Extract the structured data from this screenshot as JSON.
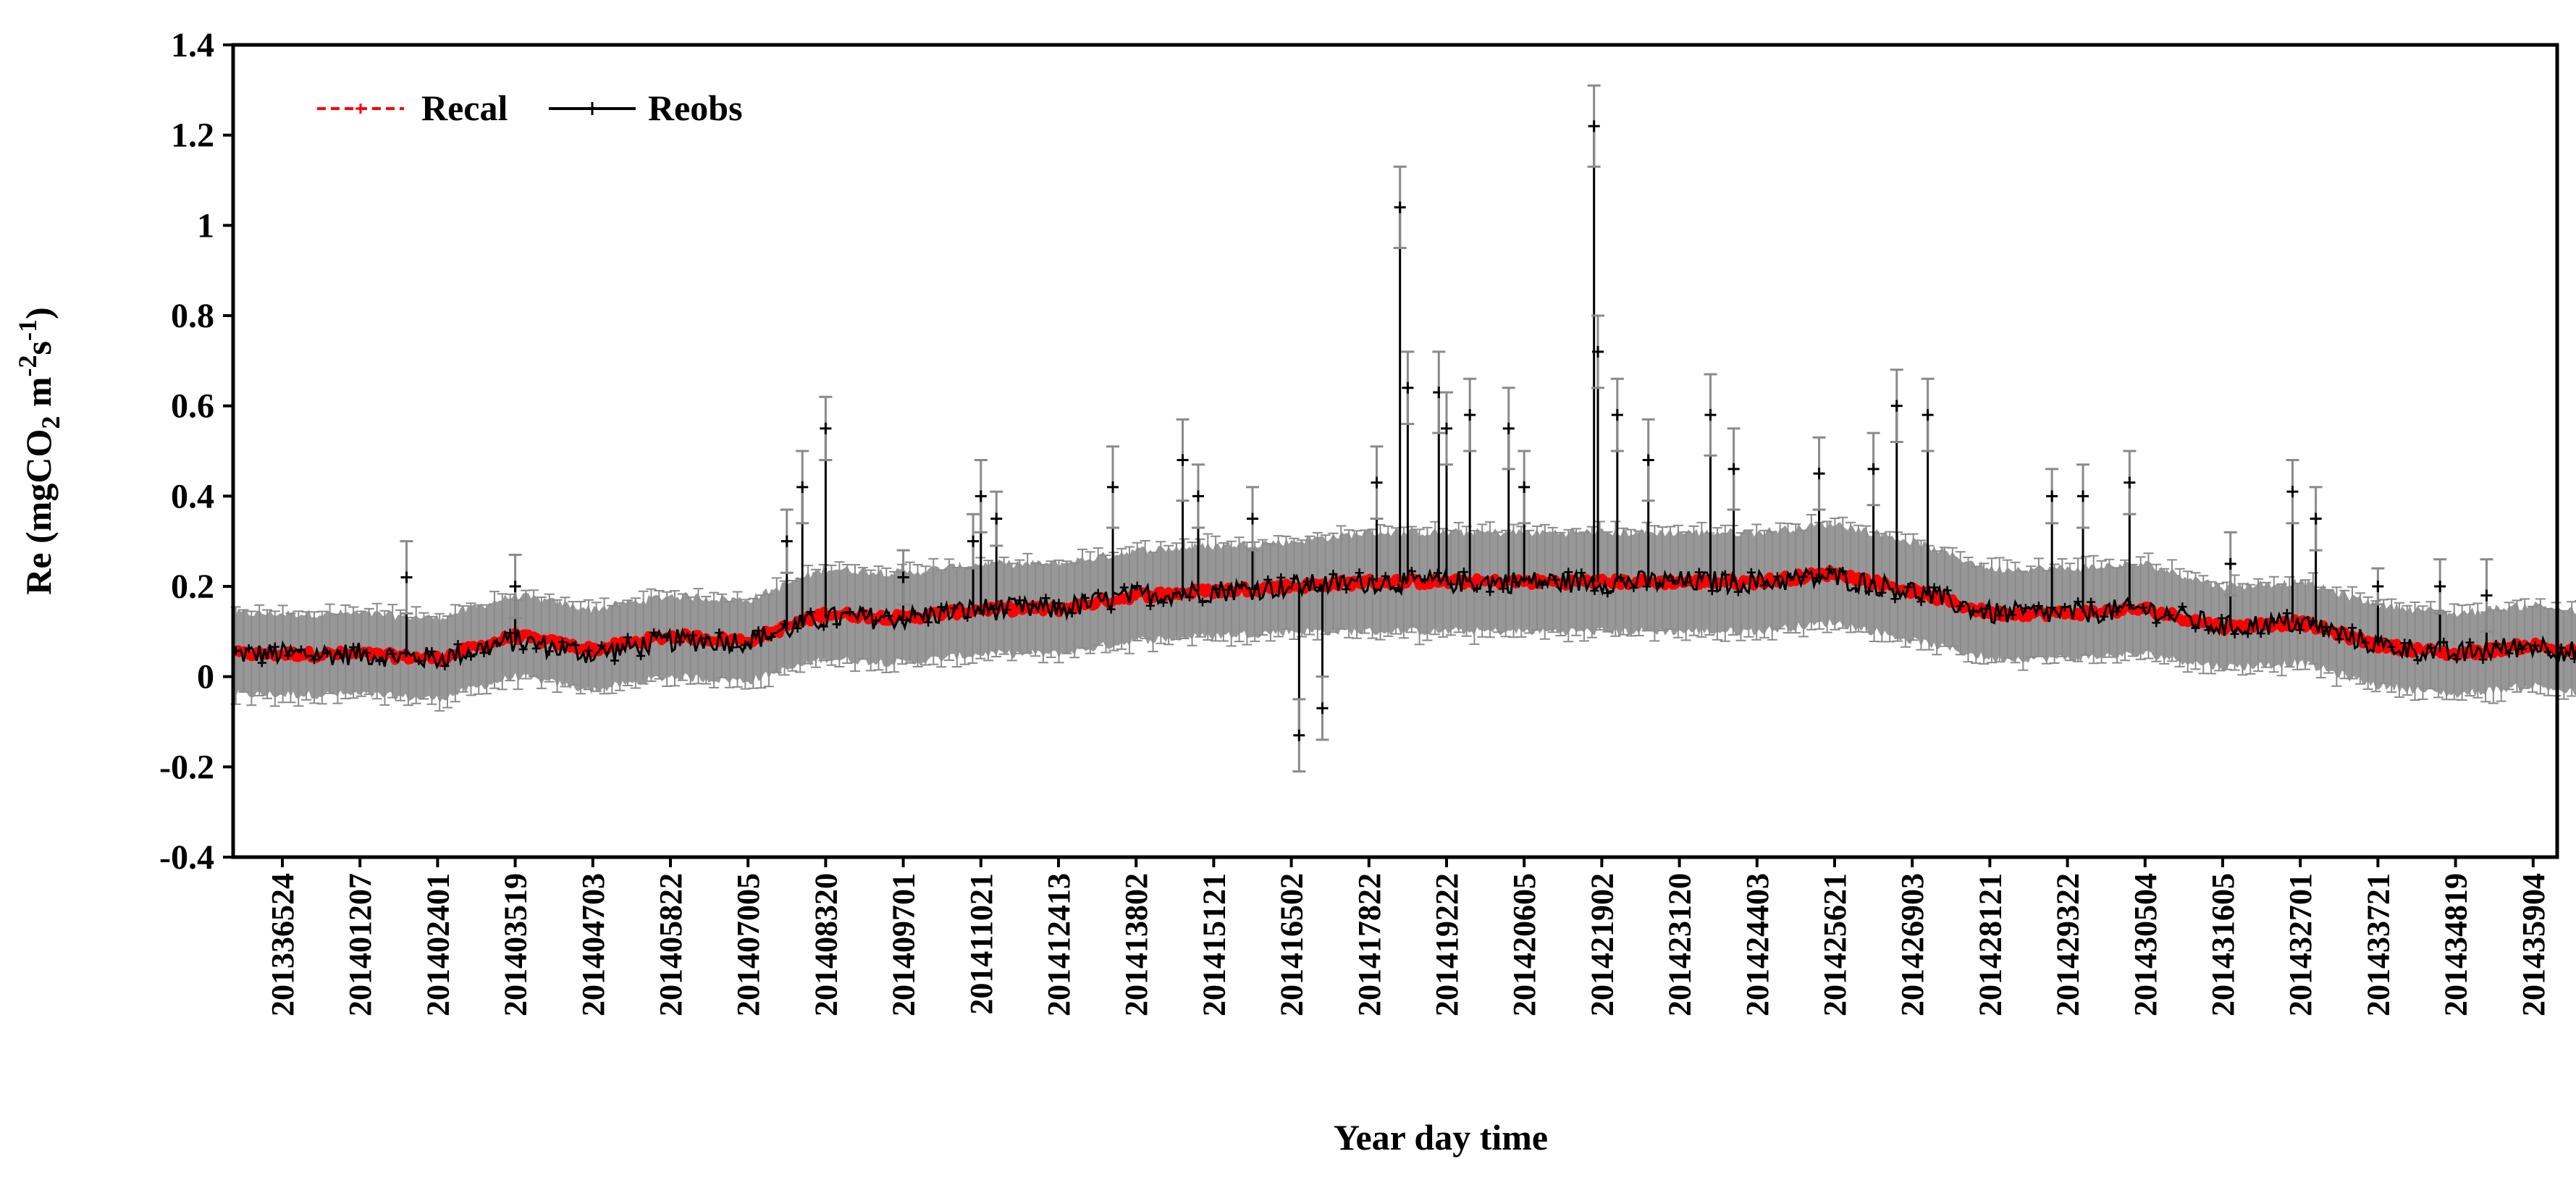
{
  "chart_data": {
    "type": "line",
    "title": "",
    "xlabel": "Year day time",
    "ylabel": {
      "prefix": "Re (mgCO",
      "co2_sub": "2",
      "middle": " m",
      "m_sup": "-2",
      "s": "s",
      "s_sup": "-1",
      "suffix": ")"
    },
    "ylim": [
      -0.4,
      1.4
    ],
    "yticks": [
      -0.4,
      -0.2,
      0,
      0.2,
      0.4,
      0.6,
      0.8,
      1,
      1.2,
      1.4
    ],
    "ytick_labels": [
      "-0.4",
      "-0.2",
      "0",
      "0.2",
      "0.4",
      "0.6",
      "0.8",
      "1",
      "1.2",
      "1.4"
    ],
    "x_tick_labels": [
      "201336524",
      "201401207",
      "201402401",
      "201403519",
      "201404703",
      "201405822",
      "201407005",
      "201408320",
      "201409701",
      "201411021",
      "201412413",
      "201413802",
      "201415121",
      "201416502",
      "201417822",
      "201419222",
      "201420605",
      "201421902",
      "201423120",
      "201424403",
      "201425621",
      "201426903",
      "201428121",
      "201429322",
      "201430504",
      "201431605",
      "201432701",
      "201433721",
      "201434819",
      "201435904"
    ],
    "legend": {
      "position": "top-left",
      "entries": [
        {
          "name": "Recal",
          "color": "#ff0000",
          "style": "dashed"
        },
        {
          "name": "Reobs",
          "color": "#000000",
          "style": "solid"
        }
      ]
    },
    "series_baseline": {
      "x_index": [
        0,
        1,
        2,
        3,
        4,
        5,
        6,
        7,
        8,
        9,
        10,
        11,
        12,
        13,
        14,
        15,
        16,
        17,
        18,
        19,
        20,
        21,
        22,
        23,
        24,
        25,
        26,
        27,
        28,
        29,
        29.7
      ],
      "recal": [
        0.05,
        0.05,
        0.04,
        0.09,
        0.06,
        0.09,
        0.08,
        0.14,
        0.13,
        0.15,
        0.15,
        0.18,
        0.19,
        0.2,
        0.21,
        0.21,
        0.21,
        0.21,
        0.21,
        0.21,
        0.23,
        0.19,
        0.14,
        0.14,
        0.15,
        0.11,
        0.12,
        0.07,
        0.05,
        0.07,
        0.05
      ],
      "reobs": [
        0.05,
        0.05,
        0.04,
        0.08,
        0.05,
        0.08,
        0.08,
        0.13,
        0.13,
        0.15,
        0.15,
        0.18,
        0.19,
        0.2,
        0.21,
        0.21,
        0.21,
        0.21,
        0.21,
        0.21,
        0.22,
        0.19,
        0.14,
        0.14,
        0.15,
        0.11,
        0.12,
        0.07,
        0.05,
        0.07,
        0.05
      ],
      "error_band": [
        0.09,
        0.09,
        0.09,
        0.09,
        0.09,
        0.09,
        0.09,
        0.1,
        0.1,
        0.1,
        0.1,
        0.1,
        0.1,
        0.1,
        0.11,
        0.11,
        0.11,
        0.11,
        0.11,
        0.11,
        0.11,
        0.11,
        0.1,
        0.1,
        0.1,
        0.09,
        0.09,
        0.09,
        0.09,
        0.09,
        0.09
      ]
    },
    "reobs_spikes": [
      {
        "x_index": 1.6,
        "value": 0.22,
        "error": 0.08
      },
      {
        "x_index": 3.0,
        "value": 0.2,
        "error": 0.07
      },
      {
        "x_index": 6.5,
        "value": 0.3,
        "error": 0.07
      },
      {
        "x_index": 6.7,
        "value": 0.42,
        "error": 0.08
      },
      {
        "x_index": 7.0,
        "value": 0.55,
        "error": 0.07
      },
      {
        "x_index": 8.0,
        "value": 0.22,
        "error": 0.06
      },
      {
        "x_index": 8.9,
        "value": 0.3,
        "error": 0.06
      },
      {
        "x_index": 9.0,
        "value": 0.4,
        "error": 0.08
      },
      {
        "x_index": 9.2,
        "value": 0.35,
        "error": 0.06
      },
      {
        "x_index": 10.7,
        "value": 0.42,
        "error": 0.09
      },
      {
        "x_index": 11.6,
        "value": 0.48,
        "error": 0.09
      },
      {
        "x_index": 11.8,
        "value": 0.4,
        "error": 0.07
      },
      {
        "x_index": 12.5,
        "value": 0.35,
        "error": 0.07
      },
      {
        "x_index": 13.1,
        "value": -0.13,
        "error": 0.08
      },
      {
        "x_index": 13.4,
        "value": -0.07,
        "error": 0.07
      },
      {
        "x_index": 14.1,
        "value": 0.43,
        "error": 0.08
      },
      {
        "x_index": 14.4,
        "value": 1.04,
        "error": 0.09
      },
      {
        "x_index": 14.5,
        "value": 0.64,
        "error": 0.08
      },
      {
        "x_index": 14.9,
        "value": 0.63,
        "error": 0.09
      },
      {
        "x_index": 15.0,
        "value": 0.55,
        "error": 0.08
      },
      {
        "x_index": 15.3,
        "value": 0.58,
        "error": 0.08
      },
      {
        "x_index": 15.8,
        "value": 0.55,
        "error": 0.09
      },
      {
        "x_index": 16.0,
        "value": 0.42,
        "error": 0.08
      },
      {
        "x_index": 16.9,
        "value": 1.22,
        "error": 0.09
      },
      {
        "x_index": 16.95,
        "value": 0.72,
        "error": 0.08
      },
      {
        "x_index": 17.2,
        "value": 0.58,
        "error": 0.08
      },
      {
        "x_index": 17.6,
        "value": 0.48,
        "error": 0.09
      },
      {
        "x_index": 18.4,
        "value": 0.58,
        "error": 0.09
      },
      {
        "x_index": 18.7,
        "value": 0.46,
        "error": 0.09
      },
      {
        "x_index": 19.8,
        "value": 0.45,
        "error": 0.08
      },
      {
        "x_index": 20.5,
        "value": 0.46,
        "error": 0.08
      },
      {
        "x_index": 20.8,
        "value": 0.6,
        "error": 0.08
      },
      {
        "x_index": 21.2,
        "value": 0.58,
        "error": 0.08
      },
      {
        "x_index": 22.8,
        "value": 0.4,
        "error": 0.06
      },
      {
        "x_index": 23.2,
        "value": 0.4,
        "error": 0.07
      },
      {
        "x_index": 23.8,
        "value": 0.43,
        "error": 0.07
      },
      {
        "x_index": 25.1,
        "value": 0.25,
        "error": 0.07
      },
      {
        "x_index": 25.9,
        "value": 0.41,
        "error": 0.07
      },
      {
        "x_index": 26.2,
        "value": 0.35,
        "error": 0.07
      },
      {
        "x_index": 27.0,
        "value": 0.2,
        "error": 0.04
      },
      {
        "x_index": 27.8,
        "value": 0.2,
        "error": 0.06
      },
      {
        "x_index": 28.4,
        "value": 0.18,
        "error": 0.08
      }
    ]
  }
}
